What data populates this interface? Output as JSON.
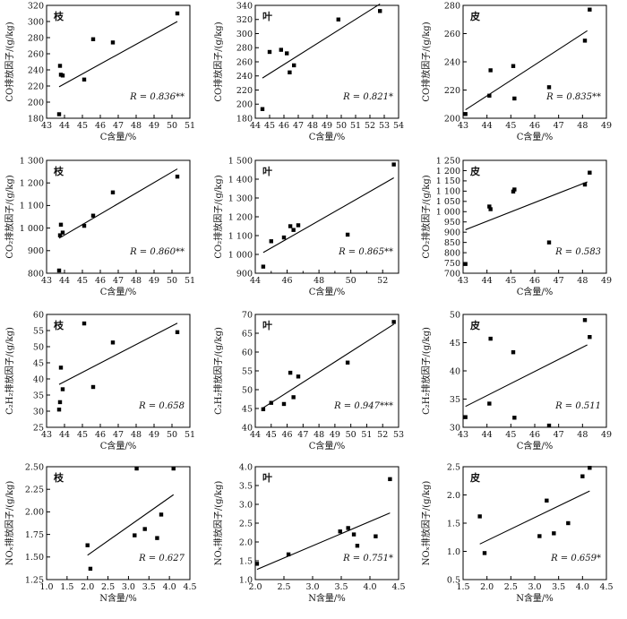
{
  "figure": {
    "charts": [
      {
        "type": "scatter",
        "panel_label": "枝",
        "xlabel": "C含量/%",
        "ylabel": "CO排放因子/(g/kg)",
        "r_label": "R = 0.836**",
        "xlim": [
          43,
          51
        ],
        "ylim": [
          180,
          320
        ],
        "xticks": [
          43,
          44,
          45,
          46,
          47,
          48,
          49,
          50,
          51
        ],
        "yticks": [
          180,
          200,
          220,
          240,
          260,
          280,
          300,
          320
        ],
        "points": [
          [
            43.7,
            185
          ],
          [
            43.75,
            245
          ],
          [
            43.8,
            234
          ],
          [
            43.9,
            233
          ],
          [
            45.1,
            228
          ],
          [
            45.6,
            278
          ],
          [
            46.7,
            274
          ],
          [
            50.3,
            310
          ]
        ],
        "fit": [
          [
            43.7,
            219
          ],
          [
            50.3,
            300
          ]
        ]
      },
      {
        "type": "scatter",
        "panel_label": "叶",
        "xlabel": "C含量/%",
        "ylabel": "CO排放因子/(g/kg)",
        "r_label": "R = 0.821*",
        "xlim": [
          44,
          54
        ],
        "ylim": [
          180,
          340
        ],
        "xticks": [
          44,
          45,
          46,
          47,
          48,
          49,
          50,
          51,
          52,
          53,
          54
        ],
        "yticks": [
          180,
          200,
          220,
          240,
          260,
          280,
          300,
          320,
          340
        ],
        "points": [
          [
            44.5,
            193
          ],
          [
            45,
            274
          ],
          [
            45.8,
            277
          ],
          [
            46.2,
            272
          ],
          [
            46.4,
            245
          ],
          [
            46.7,
            255
          ],
          [
            49.8,
            320
          ],
          [
            52.7,
            332
          ]
        ],
        "fit": [
          [
            44.5,
            237
          ],
          [
            52.7,
            342
          ]
        ]
      },
      {
        "type": "scatter",
        "panel_label": "皮",
        "xlabel": "C含量/%",
        "ylabel": "CO排放因子/(g/kg)",
        "r_label": "R = 0.835**",
        "xlim": [
          43,
          49
        ],
        "ylim": [
          200,
          280
        ],
        "xticks": [
          43,
          44,
          45,
          46,
          47,
          48,
          49
        ],
        "yticks": [
          200,
          220,
          240,
          260,
          280
        ],
        "points": [
          [
            43.1,
            203
          ],
          [
            44.1,
            216
          ],
          [
            44.15,
            234
          ],
          [
            45.1,
            237
          ],
          [
            45.15,
            214
          ],
          [
            46.6,
            222
          ],
          [
            48.1,
            255
          ],
          [
            48.3,
            277
          ]
        ],
        "fit": [
          [
            43.1,
            206
          ],
          [
            48.2,
            262
          ]
        ]
      },
      {
        "type": "scatter",
        "panel_label": "枝",
        "xlabel": "C含量/%",
        "ylabel": "CO₂排放因子/(g/kg)",
        "r_label": "R = 0.860**",
        "xlim": [
          43,
          51
        ],
        "ylim": [
          800,
          1300
        ],
        "xticks": [
          43,
          44,
          45,
          46,
          47,
          48,
          49,
          50,
          51
        ],
        "yticks": [
          800,
          900,
          1000,
          1100,
          1200,
          1300
        ],
        "ytick_labels": [
          "800",
          "900",
          "1 000",
          "1 100",
          "1 200",
          "1 300"
        ],
        "points": [
          [
            43.7,
            812
          ],
          [
            43.75,
            968
          ],
          [
            43.8,
            1015
          ],
          [
            43.9,
            980
          ],
          [
            45.1,
            1010
          ],
          [
            45.6,
            1055
          ],
          [
            46.7,
            1158
          ],
          [
            50.3,
            1228
          ]
        ],
        "fit": [
          [
            43.7,
            955
          ],
          [
            50.3,
            1262
          ]
        ]
      },
      {
        "type": "scatter",
        "panel_label": "叶",
        "xlabel": "C含量/%",
        "ylabel": "CO₂排放因子/(g/kg)",
        "r_label": "R = 0.865**",
        "xlim": [
          44,
          53
        ],
        "ylim": [
          900,
          1500
        ],
        "xticks": [
          44,
          46,
          48,
          50,
          52
        ],
        "xtick_labels": [
          "44",
          "46",
          "48",
          "50",
          "52"
        ],
        "yticks": [
          900,
          1000,
          1100,
          1200,
          1300,
          1400,
          1500
        ],
        "ytick_labels": [
          "900",
          "1 000",
          "1 100",
          "1 200",
          "1 300",
          "1 400",
          "1 500"
        ],
        "xticks_minor": [
          45,
          47,
          49,
          51,
          53
        ],
        "points": [
          [
            44.5,
            935
          ],
          [
            45,
            1070
          ],
          [
            45.8,
            1090
          ],
          [
            46.2,
            1150
          ],
          [
            46.4,
            1130
          ],
          [
            46.7,
            1155
          ],
          [
            49.8,
            1105
          ],
          [
            52.7,
            1478
          ]
        ],
        "fit": [
          [
            44.5,
            1010
          ],
          [
            52.7,
            1407
          ]
        ]
      },
      {
        "type": "scatter",
        "panel_label": "皮",
        "xlabel": "C含量/%",
        "ylabel": "CO₂排放因子/(g/kg)",
        "r_label": "R = 0.583",
        "xlim": [
          43,
          49
        ],
        "ylim": [
          700,
          1250
        ],
        "xticks": [
          43,
          44,
          45,
          46,
          47,
          48,
          49
        ],
        "yticks": [
          700,
          750,
          800,
          850,
          900,
          950,
          1000,
          1050,
          1100,
          1150,
          1200,
          1250
        ],
        "ytick_labels": [
          "700",
          "750",
          "800",
          "850",
          "900",
          "950",
          "1 000",
          "1 050",
          "1 100",
          "1 150",
          "1 200",
          "1 250"
        ],
        "points": [
          [
            43.1,
            745
          ],
          [
            44.1,
            1025
          ],
          [
            44.15,
            1012
          ],
          [
            45.1,
            1098
          ],
          [
            45.15,
            1108
          ],
          [
            46.6,
            850
          ],
          [
            48.1,
            1132
          ],
          [
            48.3,
            1190
          ]
        ],
        "fit": [
          [
            43.1,
            912
          ],
          [
            48.2,
            1145
          ]
        ]
      },
      {
        "type": "scatter",
        "panel_label": "枝",
        "xlabel": "C含量/%",
        "ylabel": "C₂H₂排放因子/(g/kg)",
        "r_label": "R = 0.658",
        "xlim": [
          43,
          51
        ],
        "ylim": [
          25,
          60
        ],
        "xticks": [
          43,
          44,
          45,
          46,
          47,
          48,
          49,
          50,
          51
        ],
        "yticks": [
          25,
          30,
          35,
          40,
          45,
          50,
          55,
          60
        ],
        "points": [
          [
            43.7,
            30.5
          ],
          [
            43.75,
            32.8
          ],
          [
            43.8,
            43.5
          ],
          [
            43.9,
            36.8
          ],
          [
            45.1,
            57.2
          ],
          [
            45.6,
            37.5
          ],
          [
            46.7,
            51.3
          ],
          [
            50.3,
            54.5
          ]
        ],
        "fit": [
          [
            43.7,
            38.3
          ],
          [
            50.3,
            57.3
          ]
        ]
      },
      {
        "type": "scatter",
        "panel_label": "叶",
        "xlabel": "C含量/%",
        "ylabel": "C₂H₂排放因子/(g/kg)",
        "r_label": "R = 0.947***",
        "xlim": [
          44,
          53
        ],
        "ylim": [
          40,
          70
        ],
        "xticks": [
          44,
          45,
          46,
          47,
          48,
          49,
          50,
          51,
          52,
          53
        ],
        "yticks": [
          40,
          45,
          50,
          55,
          60,
          65,
          70
        ],
        "points": [
          [
            44.5,
            44.8
          ],
          [
            45,
            46.5
          ],
          [
            45.8,
            46.2
          ],
          [
            46.2,
            54.5
          ],
          [
            46.4,
            48.0
          ],
          [
            46.7,
            53.5
          ],
          [
            49.8,
            57.2
          ],
          [
            52.7,
            68.0
          ]
        ],
        "fit": [
          [
            44.5,
            45.2
          ],
          [
            52.7,
            67.4
          ]
        ]
      },
      {
        "type": "scatter",
        "panel_label": "皮",
        "xlabel": "C含量/%",
        "ylabel": "C₂H₂排放因子/(g/kg)",
        "r_label": "R = 0.511",
        "xlim": [
          43,
          49
        ],
        "ylim": [
          30,
          50
        ],
        "xticks": [
          43,
          44,
          45,
          46,
          47,
          48,
          49
        ],
        "yticks": [
          30,
          35,
          40,
          45,
          50
        ],
        "points": [
          [
            43.1,
            31.8
          ],
          [
            44.1,
            34.2
          ],
          [
            44.15,
            45.7
          ],
          [
            45.1,
            43.3
          ],
          [
            45.15,
            31.7
          ],
          [
            46.6,
            30.3
          ],
          [
            48.1,
            49.0
          ],
          [
            48.3,
            46.0
          ]
        ],
        "fit": [
          [
            43.1,
            33.7
          ],
          [
            48.2,
            44.6
          ]
        ]
      },
      {
        "type": "scatter",
        "panel_label": "枝",
        "xlabel": "N含量/%",
        "ylabel": "NOₓ排放因子/(g/kg)",
        "r_label": "R = 0.627",
        "xlim": [
          1.0,
          4.5
        ],
        "ylim": [
          1.25,
          2.5
        ],
        "xticks": [
          1.0,
          1.5,
          2.0,
          2.5,
          3.0,
          3.5,
          4.0,
          4.5
        ],
        "xtick_labels": [
          "1.0",
          "1.5",
          "2.0",
          "2.5",
          "3.0",
          "3.5",
          "4.0",
          "4.5"
        ],
        "yticks": [
          1.25,
          1.5,
          1.75,
          2.0,
          2.25,
          2.5
        ],
        "ytick_labels": [
          "1.25",
          "1.50",
          "1.75",
          "2.00",
          "2.25",
          "2.50"
        ],
        "points": [
          [
            2.0,
            1.63
          ],
          [
            2.07,
            1.37
          ],
          [
            3.15,
            1.74
          ],
          [
            3.2,
            2.48
          ],
          [
            3.4,
            1.81
          ],
          [
            3.7,
            1.71
          ],
          [
            3.8,
            1.97
          ],
          [
            4.1,
            2.48
          ]
        ],
        "fit": [
          [
            2.0,
            1.52
          ],
          [
            4.1,
            2.19
          ]
        ]
      },
      {
        "type": "scatter",
        "panel_label": "叶",
        "xlabel": "N含量/%",
        "ylabel": "NOₓ排放因子/(g/kg)",
        "r_label": "R = 0.751*",
        "xlim": [
          2.0,
          4.5
        ],
        "ylim": [
          1.0,
          4.0
        ],
        "xticks": [
          2.0,
          2.5,
          3.0,
          3.5,
          4.0,
          4.5
        ],
        "xtick_labels": [
          "2.0",
          "2.5",
          "3.0",
          "3.5",
          "4.0",
          "4.5"
        ],
        "yticks": [
          1.0,
          1.5,
          2.0,
          2.5,
          3.0,
          3.5,
          4.0
        ],
        "ytick_labels": [
          "1.0",
          "1.5",
          "2.0",
          "2.5",
          "3.0",
          "3.5",
          "4.0"
        ],
        "points": [
          [
            2.03,
            1.42
          ],
          [
            2.58,
            1.67
          ],
          [
            3.48,
            2.28
          ],
          [
            3.62,
            2.37
          ],
          [
            3.72,
            2.2
          ],
          [
            3.78,
            1.9
          ],
          [
            4.1,
            2.15
          ],
          [
            4.35,
            3.67
          ]
        ],
        "fit": [
          [
            2.03,
            1.27
          ],
          [
            4.35,
            2.77
          ]
        ]
      },
      {
        "type": "scatter",
        "panel_label": "皮",
        "xlabel": "N含量/%",
        "ylabel": "NOₓ排放因子/(g/kg)",
        "r_label": "R = 0.659*",
        "xlim": [
          1.5,
          4.5
        ],
        "ylim": [
          0.5,
          2.5
        ],
        "xticks": [
          1.5,
          2.0,
          2.5,
          3.0,
          3.5,
          4.0,
          4.5
        ],
        "xtick_labels": [
          "1.5",
          "2.0",
          "2.5",
          "3.0",
          "3.5",
          "4.0",
          "4.5"
        ],
        "yticks": [
          0.5,
          1.0,
          1.5,
          2.0,
          2.5
        ],
        "ytick_labels": [
          "0.5",
          "1.0",
          "1.5",
          "2.0",
          "2.5"
        ],
        "points": [
          [
            1.85,
            1.62
          ],
          [
            1.95,
            0.97
          ],
          [
            3.1,
            1.27
          ],
          [
            3.25,
            1.9
          ],
          [
            3.4,
            1.32
          ],
          [
            3.7,
            1.5
          ],
          [
            4.0,
            2.33
          ],
          [
            4.15,
            2.48
          ]
        ],
        "fit": [
          [
            1.85,
            1.13
          ],
          [
            4.15,
            2.07
          ]
        ]
      }
    ]
  }
}
